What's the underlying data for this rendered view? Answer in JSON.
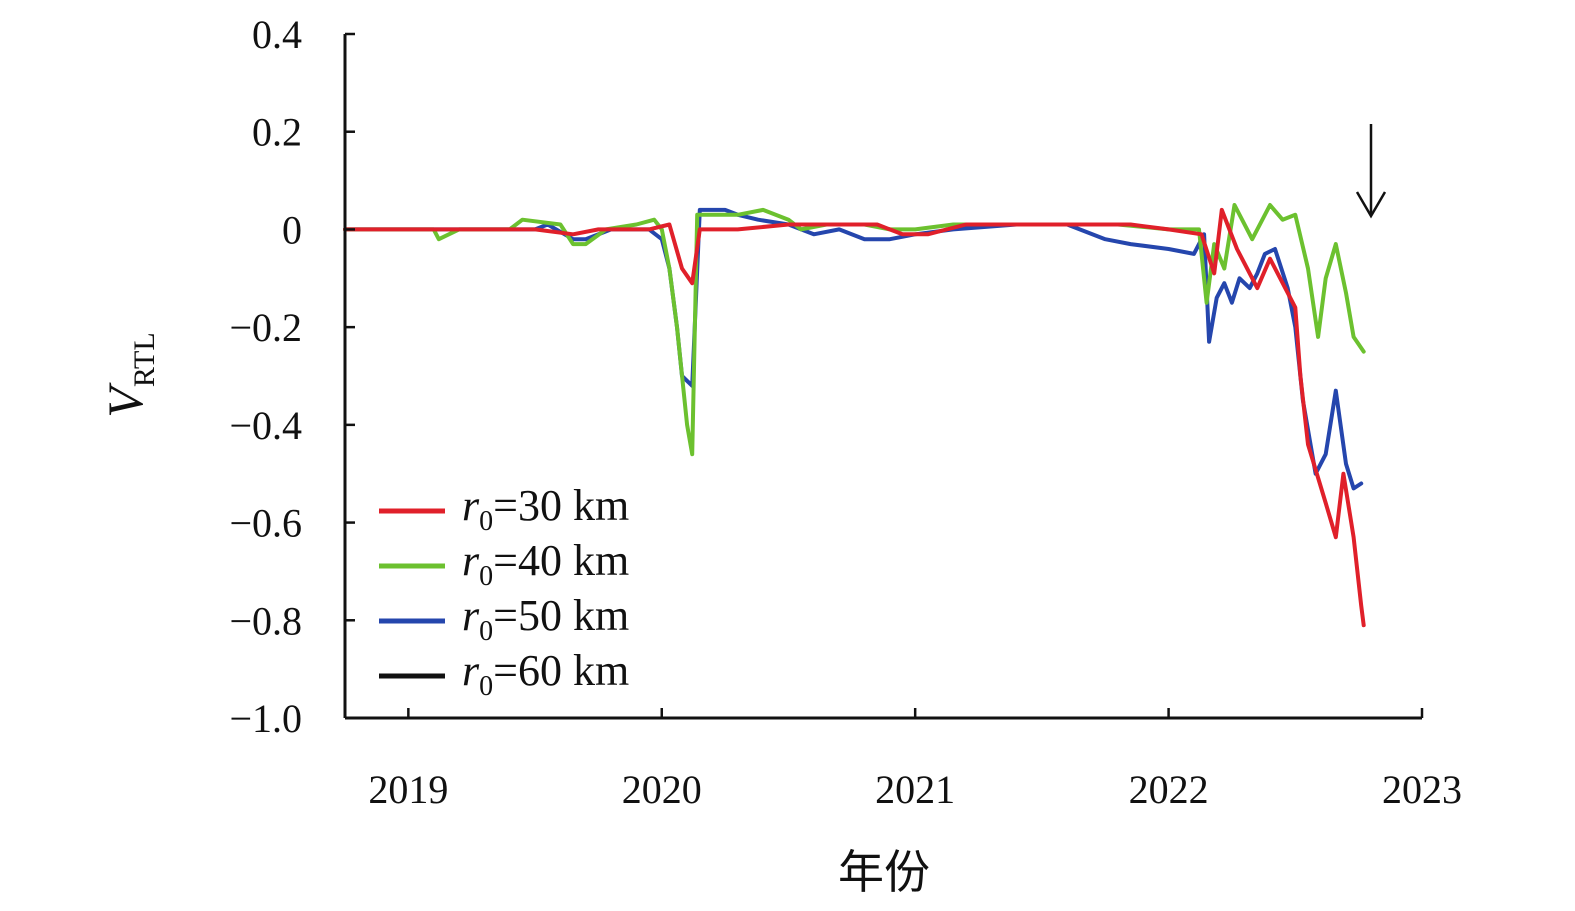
{
  "chart_data": {
    "type": "line",
    "title": "",
    "xlabel": "年份",
    "ylabel": {
      "main": "V",
      "subscript": "RTL"
    },
    "xlim": [
      2018.75,
      2023
    ],
    "ylim": [
      -1.0,
      0.4
    ],
    "x_tick_values": [
      2019,
      2020,
      2021,
      2022,
      2023
    ],
    "x_tick_labels": [
      "2019",
      "2020",
      "2021",
      "2022",
      "2023"
    ],
    "y_tick_values": [
      0.4,
      0.2,
      0,
      -0.2,
      -0.4,
      -0.6,
      -0.8,
      -1.0
    ],
    "y_tick_labels": [
      "0.4",
      "0.2",
      "0",
      "−0.2",
      "−0.4",
      "−0.6",
      "−0.8",
      "−1.0"
    ],
    "grid": false,
    "legend_position": "lower-left",
    "annotation": {
      "type": "down-arrow",
      "x": 2022.8
    },
    "series": [
      {
        "label": {
          "var": "r",
          "sub": "0",
          "text": "=30 km"
        },
        "color": "#e0202a",
        "points": [
          [
            2018.75,
            0
          ],
          [
            2019.0,
            0
          ],
          [
            2019.5,
            0
          ],
          [
            2019.65,
            -0.01
          ],
          [
            2019.75,
            0
          ],
          [
            2019.95,
            0
          ],
          [
            2020.03,
            0.01
          ],
          [
            2020.08,
            -0.08
          ],
          [
            2020.12,
            -0.11
          ],
          [
            2020.15,
            0
          ],
          [
            2020.3,
            0
          ],
          [
            2020.5,
            0.01
          ],
          [
            2020.7,
            0.01
          ],
          [
            2020.85,
            0.01
          ],
          [
            2020.95,
            -0.01
          ],
          [
            2021.05,
            -0.01
          ],
          [
            2021.2,
            0.01
          ],
          [
            2021.5,
            0.01
          ],
          [
            2021.75,
            0.01
          ],
          [
            2021.85,
            0.01
          ],
          [
            2022.0,
            0
          ],
          [
            2022.13,
            -0.01
          ],
          [
            2022.18,
            -0.09
          ],
          [
            2022.21,
            0.04
          ],
          [
            2022.27,
            -0.04
          ],
          [
            2022.35,
            -0.12
          ],
          [
            2022.4,
            -0.06
          ],
          [
            2022.5,
            -0.16
          ],
          [
            2022.52,
            -0.3
          ],
          [
            2022.55,
            -0.44
          ],
          [
            2022.62,
            -0.56
          ],
          [
            2022.66,
            -0.63
          ],
          [
            2022.69,
            -0.5
          ],
          [
            2022.73,
            -0.63
          ],
          [
            2022.76,
            -0.77
          ],
          [
            2022.77,
            -0.81
          ]
        ]
      },
      {
        "label": {
          "var": "r",
          "sub": "0",
          "text": "=40 km"
        },
        "color": "#6cc12f",
        "points": [
          [
            2018.75,
            0
          ],
          [
            2019.1,
            0
          ],
          [
            2019.12,
            -0.02
          ],
          [
            2019.2,
            0
          ],
          [
            2019.4,
            0
          ],
          [
            2019.45,
            0.02
          ],
          [
            2019.6,
            0.01
          ],
          [
            2019.65,
            -0.03
          ],
          [
            2019.7,
            -0.03
          ],
          [
            2019.78,
            0
          ],
          [
            2019.9,
            0.01
          ],
          [
            2019.97,
            0.02
          ],
          [
            2020.0,
            0
          ],
          [
            2020.03,
            -0.08
          ],
          [
            2020.06,
            -0.2
          ],
          [
            2020.1,
            -0.4
          ],
          [
            2020.12,
            -0.46
          ],
          [
            2020.14,
            0.03
          ],
          [
            2020.3,
            0.03
          ],
          [
            2020.4,
            0.04
          ],
          [
            2020.5,
            0.02
          ],
          [
            2020.55,
            0
          ],
          [
            2020.65,
            0.01
          ],
          [
            2020.8,
            0.01
          ],
          [
            2020.9,
            0
          ],
          [
            2021.0,
            0
          ],
          [
            2021.15,
            0.01
          ],
          [
            2021.4,
            0.01
          ],
          [
            2021.65,
            0.01
          ],
          [
            2021.8,
            0.01
          ],
          [
            2022.0,
            0
          ],
          [
            2022.12,
            0
          ],
          [
            2022.15,
            -0.15
          ],
          [
            2022.18,
            -0.03
          ],
          [
            2022.22,
            -0.08
          ],
          [
            2022.26,
            0.05
          ],
          [
            2022.33,
            -0.02
          ],
          [
            2022.4,
            0.05
          ],
          [
            2022.45,
            0.02
          ],
          [
            2022.5,
            0.03
          ],
          [
            2022.55,
            -0.08
          ],
          [
            2022.59,
            -0.22
          ],
          [
            2022.62,
            -0.1
          ],
          [
            2022.66,
            -0.03
          ],
          [
            2022.7,
            -0.13
          ],
          [
            2022.73,
            -0.22
          ],
          [
            2022.77,
            -0.25
          ]
        ]
      },
      {
        "label": {
          "var": "r",
          "sub": "0",
          "text": "=50 km"
        },
        "color": "#2546ad",
        "points": [
          [
            2018.75,
            0
          ],
          [
            2019.5,
            0
          ],
          [
            2019.55,
            0.01
          ],
          [
            2019.65,
            -0.02
          ],
          [
            2019.7,
            -0.02
          ],
          [
            2019.8,
            0
          ],
          [
            2019.95,
            0
          ],
          [
            2020.0,
            -0.02
          ],
          [
            2020.03,
            -0.08
          ],
          [
            2020.06,
            -0.2
          ],
          [
            2020.08,
            -0.3
          ],
          [
            2020.12,
            -0.32
          ],
          [
            2020.15,
            0.04
          ],
          [
            2020.25,
            0.04
          ],
          [
            2020.3,
            0.03
          ],
          [
            2020.38,
            0.02
          ],
          [
            2020.5,
            0.01
          ],
          [
            2020.6,
            -0.01
          ],
          [
            2020.7,
            0
          ],
          [
            2020.8,
            -0.02
          ],
          [
            2020.9,
            -0.02
          ],
          [
            2021.0,
            -0.01
          ],
          [
            2021.15,
            0
          ],
          [
            2021.4,
            0.01
          ],
          [
            2021.6,
            0.01
          ],
          [
            2021.75,
            -0.02
          ],
          [
            2021.85,
            -0.03
          ],
          [
            2022.0,
            -0.04
          ],
          [
            2022.1,
            -0.05
          ],
          [
            2022.14,
            -0.01
          ],
          [
            2022.16,
            -0.23
          ],
          [
            2022.19,
            -0.14
          ],
          [
            2022.22,
            -0.11
          ],
          [
            2022.25,
            -0.15
          ],
          [
            2022.28,
            -0.1
          ],
          [
            2022.32,
            -0.12
          ],
          [
            2022.35,
            -0.09
          ],
          [
            2022.38,
            -0.05
          ],
          [
            2022.42,
            -0.04
          ],
          [
            2022.47,
            -0.12
          ],
          [
            2022.5,
            -0.2
          ],
          [
            2022.53,
            -0.35
          ],
          [
            2022.58,
            -0.5
          ],
          [
            2022.62,
            -0.46
          ],
          [
            2022.66,
            -0.33
          ],
          [
            2022.7,
            -0.48
          ],
          [
            2022.73,
            -0.53
          ],
          [
            2022.76,
            -0.52
          ]
        ]
      },
      {
        "label": {
          "var": "r",
          "sub": "0",
          "text": "=60 km"
        },
        "color": "#111111",
        "points": []
      }
    ]
  }
}
